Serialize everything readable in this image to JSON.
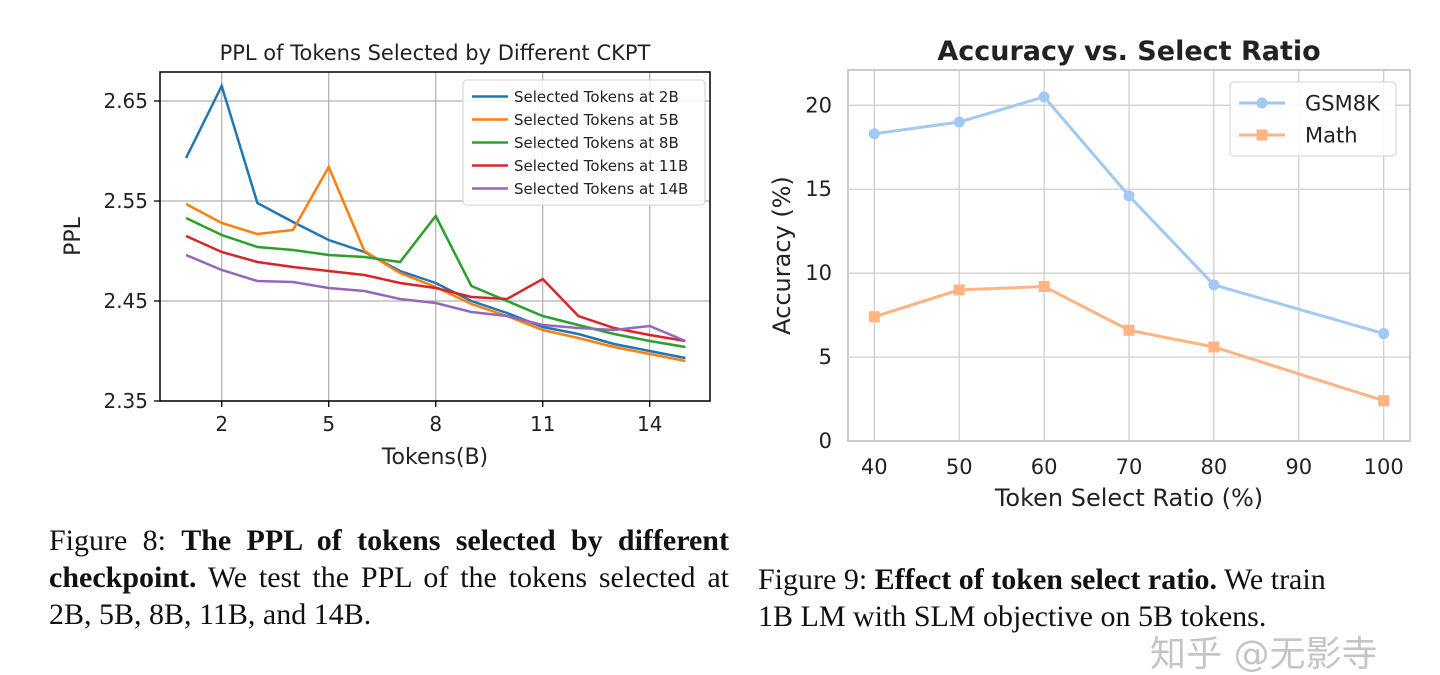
{
  "chart_data": [
    {
      "type": "line",
      "title": "PPL of Tokens Selected by Different CKPT",
      "xlabel": "Tokens(B)",
      "ylabel": "PPL",
      "x": [
        1,
        2,
        3,
        4,
        5,
        6,
        7,
        8,
        9,
        10,
        11,
        12,
        13,
        14,
        15
      ],
      "xticks": [
        2,
        5,
        8,
        11,
        14
      ],
      "yticks": [
        2.35,
        2.45,
        2.55,
        2.65
      ],
      "xlim": [
        0.27,
        15.69
      ],
      "ylim": [
        2.35,
        2.679
      ],
      "grid": true,
      "legend_position": "top-right",
      "series": [
        {
          "name": "Selected Tokens at 2B",
          "color": "#1f77b4",
          "values": [
            2.593,
            2.665,
            2.548,
            2.529,
            2.511,
            2.499,
            2.48,
            2.468,
            2.45,
            2.438,
            2.424,
            2.417,
            2.407,
            2.4,
            2.393
          ]
        },
        {
          "name": "Selected Tokens at 5B",
          "color": "#ff7f0e",
          "values": [
            2.547,
            2.528,
            2.517,
            2.521,
            2.584,
            2.5,
            2.478,
            2.464,
            2.447,
            2.435,
            2.421,
            2.413,
            2.404,
            2.397,
            2.39
          ]
        },
        {
          "name": "Selected Tokens at 8B",
          "color": "#2ca02c",
          "values": [
            2.533,
            2.516,
            2.504,
            2.501,
            2.496,
            2.494,
            2.489,
            2.535,
            2.465,
            2.45,
            2.435,
            2.426,
            2.417,
            2.41,
            2.404
          ]
        },
        {
          "name": "Selected Tokens at 11B",
          "color": "#d62728",
          "values": [
            2.515,
            2.499,
            2.489,
            2.484,
            2.48,
            2.476,
            2.468,
            2.463,
            2.454,
            2.452,
            2.472,
            2.435,
            2.423,
            2.416,
            2.41
          ]
        },
        {
          "name": "Selected Tokens at 14B",
          "color": "#9467bd",
          "values": [
            2.496,
            2.481,
            2.47,
            2.469,
            2.463,
            2.46,
            2.452,
            2.448,
            2.439,
            2.435,
            2.426,
            2.423,
            2.421,
            2.425,
            2.41
          ]
        }
      ]
    },
    {
      "type": "line",
      "title": "Accuracy vs. Select Ratio",
      "xlabel": "Token Select Ratio (%)",
      "ylabel": "Accuracy (%)",
      "x": [
        40,
        50,
        60,
        70,
        80,
        100
      ],
      "xticks": [
        40,
        50,
        60,
        70,
        80,
        90,
        100
      ],
      "yticks": [
        0,
        5,
        10,
        15,
        20
      ],
      "xlim": [
        36.9,
        103.1
      ],
      "ylim": [
        0,
        22.1
      ],
      "grid": true,
      "legend_position": "top-right",
      "series": [
        {
          "name": "GSM8K",
          "color": "#a1c9f4",
          "marker": "circle",
          "values": [
            18.3,
            19.0,
            20.5,
            14.6,
            9.3,
            6.4
          ]
        },
        {
          "name": "Math",
          "color": "#ffb482",
          "marker": "square",
          "values": [
            7.4,
            9.0,
            9.2,
            6.6,
            5.6,
            2.4
          ]
        }
      ]
    }
  ],
  "captions": {
    "fig8": {
      "label": "Figure 8: ",
      "bold": "The PPL of tokens selected by different checkpoint.",
      "text": " We test the PPL of the tokens selected at 2B, 5B, 8B, 11B, and 14B."
    },
    "fig9": {
      "label": "Figure 9: ",
      "bold": "Effect of token select ratio.",
      "text": " We train",
      "line2": "1B LM with SLM objective on 5B tokens."
    }
  },
  "watermark": "知乎 @无影寺"
}
